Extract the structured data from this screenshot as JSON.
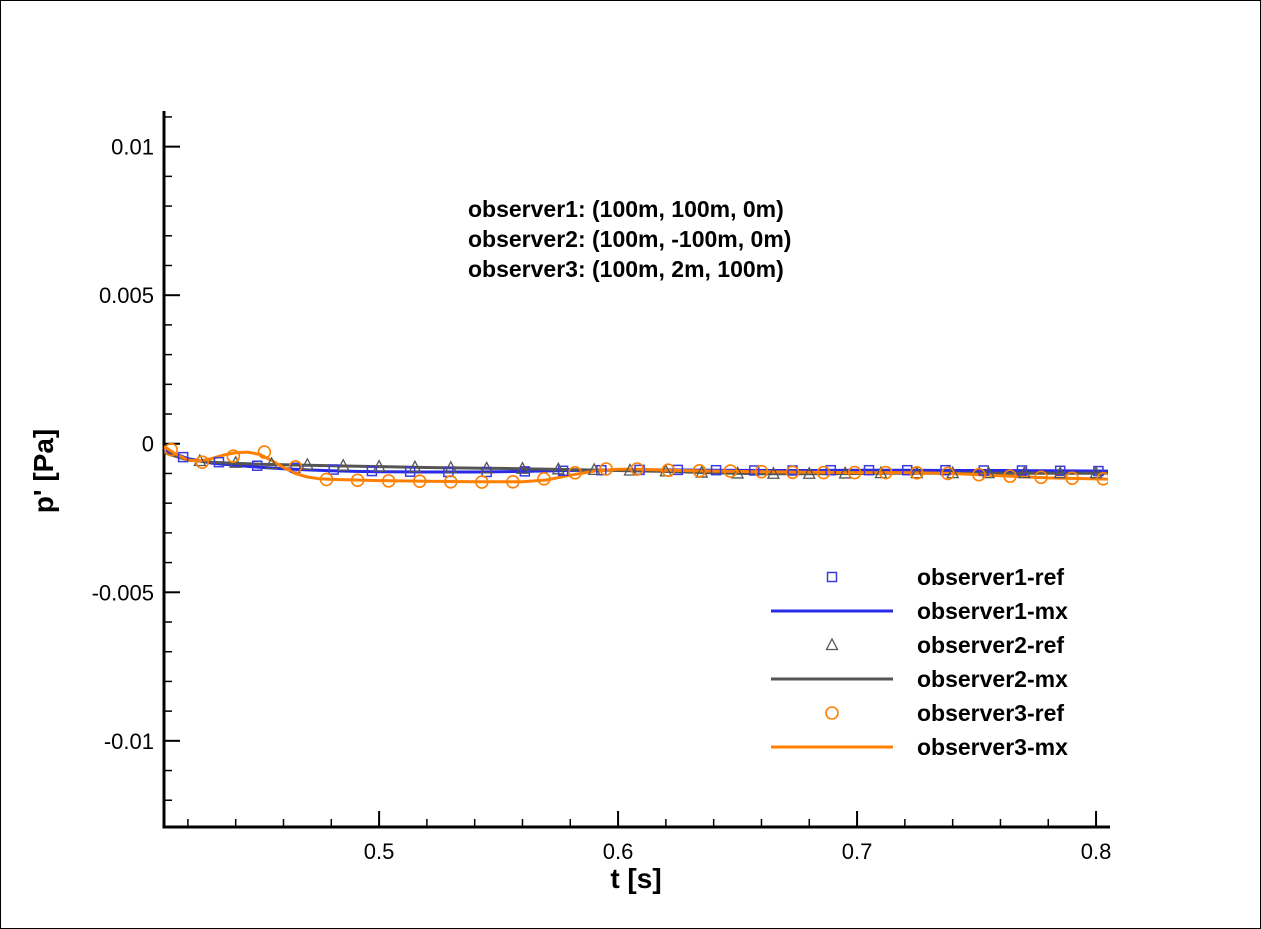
{
  "chart_data": {
    "type": "line",
    "title": "",
    "xlabel": "t [s]",
    "ylabel": "p' [Pa]",
    "xlim": [
      0.41,
      0.805
    ],
    "ylim": [
      -0.0129,
      0.0112
    ],
    "x_ticks": [
      0.5,
      0.6,
      0.7,
      0.8
    ],
    "x_tick_labels": [
      "0.5",
      "0.6",
      "0.7",
      "0.8"
    ],
    "x_minor_step": 0.02,
    "y_ticks": [
      0.01,
      0.005,
      0,
      -0.005,
      -0.01
    ],
    "y_tick_labels": [
      "0.01",
      "0.005",
      "0",
      "-0.005",
      "-0.01"
    ],
    "y_minor_step": 0.001,
    "grid": false,
    "legend_position": "bottom-right",
    "annotation": [
      "observer1: (100m, 100m, 0m)",
      "observer2: (100m, -100m, 0m)",
      "observer3: (100m, 2m, 100m)"
    ],
    "series": [
      {
        "name": "observer1-ref",
        "kind": "markers",
        "marker": "square",
        "color": "#3a3adf",
        "x": [
          0.418,
          0.433,
          0.449,
          0.465,
          0.481,
          0.497,
          0.513,
          0.529,
          0.545,
          0.561,
          0.577,
          0.593,
          0.609,
          0.625,
          0.641,
          0.657,
          0.673,
          0.689,
          0.705,
          0.721,
          0.737,
          0.753,
          0.769,
          0.785,
          0.801
        ],
        "y": [
          -0.00045,
          -0.00062,
          -0.00074,
          -0.00081,
          -0.00087,
          -0.00092,
          -0.00094,
          -0.00095,
          -0.00095,
          -0.00093,
          -0.00091,
          -0.00089,
          -0.00088,
          -0.00088,
          -0.00089,
          -0.0009,
          -0.0009,
          -0.00089,
          -0.00089,
          -0.00089,
          -0.00089,
          -0.0009,
          -0.0009,
          -0.00091,
          -0.00092
        ]
      },
      {
        "name": "observer1-mx",
        "kind": "line",
        "color": "#2929e6",
        "x": [
          0.41,
          0.42,
          0.43,
          0.44,
          0.45,
          0.46,
          0.47,
          0.48,
          0.49,
          0.5,
          0.52,
          0.54,
          0.56,
          0.58,
          0.6,
          0.62,
          0.64,
          0.66,
          0.68,
          0.7,
          0.72,
          0.74,
          0.76,
          0.78,
          0.805
        ],
        "y": [
          -0.0002,
          -0.0005,
          -0.00065,
          -0.00073,
          -0.00079,
          -0.00084,
          -0.00088,
          -0.00091,
          -0.00093,
          -0.00094,
          -0.00095,
          -0.00095,
          -0.00093,
          -0.0009,
          -0.00088,
          -0.00088,
          -0.00089,
          -0.0009,
          -0.0009,
          -0.00089,
          -0.00089,
          -0.0009,
          -0.0009,
          -0.00091,
          -0.00092
        ]
      },
      {
        "name": "observer2-ref",
        "kind": "markers",
        "marker": "triangle",
        "color": "#555555",
        "x": [
          0.425,
          0.44,
          0.455,
          0.47,
          0.485,
          0.5,
          0.515,
          0.53,
          0.545,
          0.56,
          0.575,
          0.59,
          0.605,
          0.62,
          0.635,
          0.65,
          0.665,
          0.68,
          0.695,
          0.71,
          0.725,
          0.74,
          0.755,
          0.77,
          0.785,
          0.8
        ],
        "y": [
          -0.00058,
          -0.00064,
          -0.00068,
          -0.00071,
          -0.00074,
          -0.00077,
          -0.00079,
          -0.00081,
          -0.00083,
          -0.00084,
          -0.00086,
          -0.00088,
          -0.0009,
          -0.00093,
          -0.00097,
          -0.001,
          -0.00101,
          -0.00101,
          -0.001,
          -0.00099,
          -0.00099,
          -0.00099,
          -0.00099,
          -0.00099,
          -0.00099,
          -0.00099
        ]
      },
      {
        "name": "observer2-mx",
        "kind": "line",
        "color": "#555555",
        "x": [
          0.41,
          0.42,
          0.43,
          0.44,
          0.45,
          0.46,
          0.48,
          0.5,
          0.52,
          0.54,
          0.56,
          0.58,
          0.6,
          0.62,
          0.64,
          0.66,
          0.68,
          0.7,
          0.72,
          0.74,
          0.76,
          0.78,
          0.805
        ],
        "y": [
          -0.0003,
          -0.00055,
          -0.00062,
          -0.00066,
          -0.00069,
          -0.00071,
          -0.00074,
          -0.00077,
          -0.0008,
          -0.00082,
          -0.00084,
          -0.00087,
          -0.0009,
          -0.00093,
          -0.00098,
          -0.00101,
          -0.00101,
          -0.001,
          -0.00099,
          -0.00099,
          -0.00099,
          -0.00099,
          -0.00099
        ]
      },
      {
        "name": "observer3-ref",
        "kind": "markers",
        "marker": "circle",
        "color": "#ff8000",
        "x": [
          0.413,
          0.426,
          0.439,
          0.452,
          0.465,
          0.478,
          0.491,
          0.504,
          0.517,
          0.53,
          0.543,
          0.556,
          0.569,
          0.582,
          0.595,
          0.608,
          0.621,
          0.634,
          0.647,
          0.66,
          0.673,
          0.686,
          0.699,
          0.712,
          0.725,
          0.738,
          0.751,
          0.764,
          0.777,
          0.79,
          0.803
        ],
        "y": [
          -0.0002,
          -0.00062,
          -0.00042,
          -0.00028,
          -0.00078,
          -0.0012,
          -0.00123,
          -0.00125,
          -0.00126,
          -0.00128,
          -0.00129,
          -0.00128,
          -0.00118,
          -0.00098,
          -0.00085,
          -0.00085,
          -0.00089,
          -0.00091,
          -0.00092,
          -0.00094,
          -0.00096,
          -0.00097,
          -0.00097,
          -0.00097,
          -0.00098,
          -0.001,
          -0.00104,
          -0.00109,
          -0.00113,
          -0.00116,
          -0.00118
        ]
      },
      {
        "name": "observer3-mx",
        "kind": "line",
        "color": "#ff8000",
        "x": [
          0.41,
          0.415,
          0.42,
          0.425,
          0.43,
          0.435,
          0.44,
          0.445,
          0.45,
          0.455,
          0.46,
          0.465,
          0.47,
          0.475,
          0.48,
          0.49,
          0.5,
          0.52,
          0.54,
          0.56,
          0.57,
          0.58,
          0.59,
          0.6,
          0.61,
          0.62,
          0.64,
          0.66,
          0.68,
          0.7,
          0.72,
          0.74,
          0.76,
          0.78,
          0.805
        ],
        "y": [
          -0.0001,
          -0.00035,
          -0.00055,
          -0.00058,
          -0.0005,
          -0.00038,
          -0.0003,
          -0.00028,
          -0.00036,
          -0.00056,
          -0.0008,
          -0.001,
          -0.00112,
          -0.00118,
          -0.0012,
          -0.00122,
          -0.00124,
          -0.00126,
          -0.00128,
          -0.00128,
          -0.00122,
          -0.00106,
          -0.00092,
          -0.00086,
          -0.00086,
          -0.00089,
          -0.00092,
          -0.00094,
          -0.00096,
          -0.00097,
          -0.00097,
          -0.001,
          -0.00108,
          -0.00115,
          -0.00119
        ]
      }
    ]
  }
}
